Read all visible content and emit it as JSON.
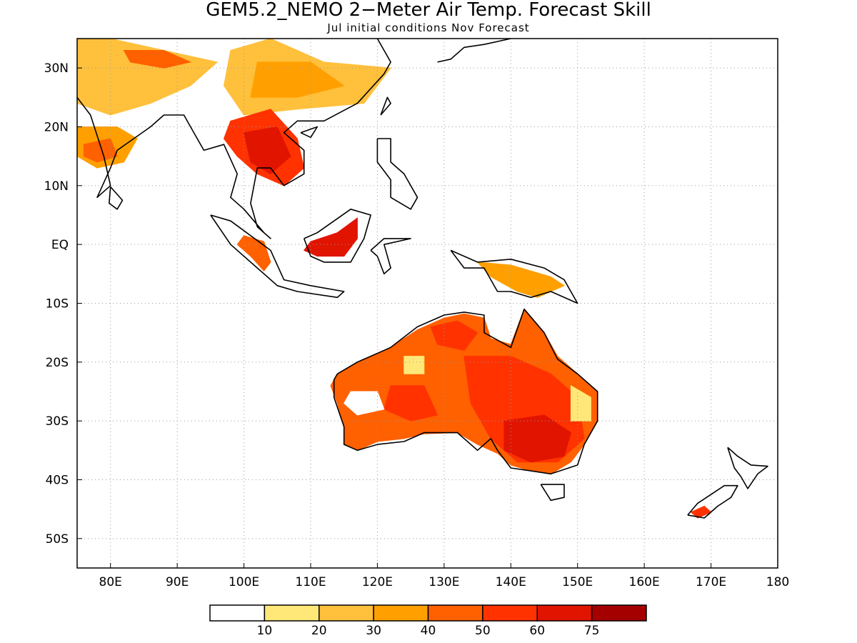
{
  "title": "GEM5.2_NEMO 2−Meter Air Temp. Forecast Skill",
  "subtitle": "Jul initial conditions  Nov Forecast",
  "map": {
    "lon_range": [
      75,
      180
    ],
    "lat_range": [
      -55,
      35
    ],
    "x_ticks": [
      {
        "value": 80,
        "label": "80E"
      },
      {
        "value": 90,
        "label": "90E"
      },
      {
        "value": 100,
        "label": "100E"
      },
      {
        "value": 110,
        "label": "110E"
      },
      {
        "value": 120,
        "label": "120E"
      },
      {
        "value": 130,
        "label": "130E"
      },
      {
        "value": 140,
        "label": "140E"
      },
      {
        "value": 150,
        "label": "150E"
      },
      {
        "value": 160,
        "label": "160E"
      },
      {
        "value": 170,
        "label": "170E"
      },
      {
        "value": 180,
        "label": "180"
      }
    ],
    "y_ticks": [
      {
        "value": 30,
        "label": "30N"
      },
      {
        "value": 20,
        "label": "20N"
      },
      {
        "value": 10,
        "label": "10N"
      },
      {
        "value": 0,
        "label": "EQ"
      },
      {
        "value": -10,
        "label": "10S"
      },
      {
        "value": -20,
        "label": "20S"
      },
      {
        "value": -30,
        "label": "30S"
      },
      {
        "value": -40,
        "label": "40S"
      },
      {
        "value": -50,
        "label": "50S"
      }
    ],
    "grid": "dotted",
    "coastline_color": "#000000"
  },
  "colorbar": {
    "colors": [
      "#ffffff",
      "#ffe878",
      "#ffc03c",
      "#ffa000",
      "#ff6000",
      "#ff3200",
      "#e11400",
      "#a50000"
    ],
    "labels": [
      "10",
      "20",
      "30",
      "40",
      "50",
      "60",
      "75"
    ]
  },
  "regions": [
    {
      "name": "india_north",
      "level": 2,
      "poly": [
        [
          75,
          35
        ],
        [
          80,
          35
        ],
        [
          88,
          33
        ],
        [
          96,
          31
        ],
        [
          92,
          27
        ],
        [
          86,
          24
        ],
        [
          80,
          22
        ],
        [
          75,
          24
        ]
      ]
    },
    {
      "name": "india_west",
      "level": 3,
      "poly": [
        [
          75,
          20
        ],
        [
          81,
          20
        ],
        [
          84,
          18
        ],
        [
          82,
          14
        ],
        [
          78,
          13
        ],
        [
          75,
          15
        ]
      ]
    },
    {
      "name": "india_core",
      "level": 4,
      "poly": [
        [
          76,
          17
        ],
        [
          80,
          18
        ],
        [
          81,
          15
        ],
        [
          78,
          14
        ],
        [
          76,
          15
        ]
      ]
    },
    {
      "name": "himalaya_band",
      "level": 4,
      "poly": [
        [
          82,
          33
        ],
        [
          88,
          33
        ],
        [
          92,
          31
        ],
        [
          88,
          30
        ],
        [
          83,
          31
        ]
      ]
    },
    {
      "name": "china_south",
      "level": 2,
      "poly": [
        [
          98,
          33
        ],
        [
          104,
          35
        ],
        [
          112,
          31
        ],
        [
          122,
          30
        ],
        [
          118,
          24
        ],
        [
          108,
          23
        ],
        [
          100,
          22
        ],
        [
          97,
          27
        ]
      ]
    },
    {
      "name": "china_inner",
      "level": 3,
      "poly": [
        [
          102,
          31
        ],
        [
          110,
          31
        ],
        [
          115,
          27
        ],
        [
          108,
          25
        ],
        [
          101,
          25
        ]
      ]
    },
    {
      "name": "indochina",
      "level": 5,
      "poly": [
        [
          98,
          21
        ],
        [
          104,
          23
        ],
        [
          108,
          18
        ],
        [
          109,
          13
        ],
        [
          106,
          10
        ],
        [
          102,
          12
        ],
        [
          99,
          15
        ],
        [
          97,
          18
        ]
      ]
    },
    {
      "name": "indochina_core",
      "level": 6,
      "poly": [
        [
          100,
          19
        ],
        [
          105,
          20
        ],
        [
          107,
          15
        ],
        [
          104,
          12
        ],
        [
          101,
          14
        ]
      ]
    },
    {
      "name": "malay_sumatra",
      "level": 4,
      "poly": [
        [
          100,
          1.5
        ],
        [
          103,
          0.5
        ],
        [
          104,
          -3
        ],
        [
          103,
          -4.5
        ],
        [
          101,
          -2
        ],
        [
          99,
          0
        ]
      ]
    },
    {
      "name": "borneo",
      "level": 6,
      "poly": [
        [
          110,
          0.5
        ],
        [
          114,
          2
        ],
        [
          117,
          4.5
        ],
        [
          117,
          1
        ],
        [
          115,
          -2
        ],
        [
          111,
          -2
        ],
        [
          109,
          -1
        ]
      ]
    },
    {
      "name": "new_guinea",
      "level": 3,
      "poly": [
        [
          135,
          -3
        ],
        [
          140,
          -3.5
        ],
        [
          146,
          -5.5
        ],
        [
          148,
          -7
        ],
        [
          144,
          -9
        ],
        [
          141,
          -8
        ],
        [
          137,
          -5.5
        ]
      ]
    },
    {
      "name": "aus_base",
      "level": 4,
      "poly": [
        [
          114,
          -22
        ],
        [
          117,
          -20
        ],
        [
          122,
          -17.5
        ],
        [
          126,
          -14.5
        ],
        [
          130,
          -12.5
        ],
        [
          133,
          -11.8
        ],
        [
          136,
          -12.5
        ],
        [
          137,
          -16
        ],
        [
          140,
          -17
        ],
        [
          142,
          -11
        ],
        [
          145,
          -15
        ],
        [
          147,
          -19
        ],
        [
          150,
          -22
        ],
        [
          153,
          -25
        ],
        [
          153,
          -30
        ],
        [
          151,
          -34
        ],
        [
          149,
          -37
        ],
        [
          146,
          -39
        ],
        [
          143,
          -38.5
        ],
        [
          140,
          -37.5
        ],
        [
          138,
          -35.5
        ],
        [
          135,
          -34
        ],
        [
          132,
          -32
        ],
        [
          127,
          -32.2
        ],
        [
          124,
          -33
        ],
        [
          120,
          -33.5
        ],
        [
          117,
          -35
        ],
        [
          115,
          -34
        ],
        [
          115,
          -31
        ],
        [
          114,
          -27
        ],
        [
          113,
          -24
        ]
      ]
    },
    {
      "name": "aus_east_mid",
      "level": 5,
      "poly": [
        [
          133,
          -19
        ],
        [
          140,
          -19
        ],
        [
          146,
          -22
        ],
        [
          150,
          -26
        ],
        [
          151,
          -33
        ],
        [
          147,
          -37
        ],
        [
          141,
          -37
        ],
        [
          137,
          -33
        ],
        [
          134,
          -27
        ]
      ]
    },
    {
      "name": "aus_southeast",
      "level": 6,
      "poly": [
        [
          139,
          -30
        ],
        [
          145,
          -29
        ],
        [
          149,
          -32
        ],
        [
          148,
          -36
        ],
        [
          143,
          -37
        ],
        [
          139,
          -35
        ]
      ]
    },
    {
      "name": "aus_central",
      "level": 5,
      "poly": [
        [
          122,
          -24
        ],
        [
          127,
          -24
        ],
        [
          129,
          -29
        ],
        [
          125,
          -30
        ],
        [
          121,
          -28
        ]
      ]
    },
    {
      "name": "aus_north",
      "level": 5,
      "poly": [
        [
          128,
          -14
        ],
        [
          132,
          -13
        ],
        [
          135,
          -15
        ],
        [
          133,
          -18
        ],
        [
          129,
          -17
        ]
      ]
    },
    {
      "name": "aus_wpale",
      "level": 0,
      "poly": [
        [
          116,
          -25
        ],
        [
          120,
          -25
        ],
        [
          121,
          -28
        ],
        [
          117,
          -29
        ],
        [
          115,
          -27
        ]
      ]
    },
    {
      "name": "aus_nwpale",
      "level": 1,
      "poly": [
        [
          124,
          -19
        ],
        [
          127,
          -19
        ],
        [
          127,
          -22
        ],
        [
          124,
          -22
        ]
      ]
    },
    {
      "name": "aus_epale",
      "level": 1,
      "poly": [
        [
          149,
          -24
        ],
        [
          152,
          -26
        ],
        [
          152,
          -30
        ],
        [
          149,
          -30
        ]
      ]
    },
    {
      "name": "new_zealand",
      "level": 5,
      "poly": [
        [
          167,
          -45.5
        ],
        [
          169,
          -44.5
        ],
        [
          170,
          -45.5
        ],
        [
          168,
          -46.5
        ]
      ]
    }
  ],
  "coastlines": [
    {
      "name": "indian_coast",
      "pts": [
        [
          75,
          25
        ],
        [
          77,
          22
        ],
        [
          79,
          15
        ],
        [
          80,
          10
        ],
        [
          78,
          8
        ],
        [
          80,
          13
        ],
        [
          81,
          16
        ],
        [
          86,
          20
        ],
        [
          88,
          22
        ],
        [
          91,
          22
        ],
        [
          92,
          20
        ],
        [
          94,
          16
        ],
        [
          97,
          17
        ],
        [
          99,
          12
        ],
        [
          98,
          8
        ],
        [
          100,
          6
        ],
        [
          103,
          2
        ],
        [
          104,
          1
        ],
        [
          102,
          3
        ],
        [
          101,
          7
        ],
        [
          102,
          13
        ],
        [
          104,
          13
        ],
        [
          106,
          10
        ],
        [
          109,
          12
        ],
        [
          109,
          16
        ],
        [
          106,
          19
        ],
        [
          108,
          21
        ],
        [
          112,
          21
        ],
        [
          117,
          24
        ],
        [
          121,
          29
        ],
        [
          122,
          31
        ],
        [
          120,
          35
        ]
      ]
    },
    {
      "name": "sumatra_java",
      "pts": [
        [
          95,
          5
        ],
        [
          98,
          4
        ],
        [
          104,
          -1
        ],
        [
          106,
          -6
        ],
        [
          110,
          -7
        ],
        [
          115,
          -8
        ],
        [
          114,
          -9
        ],
        [
          108,
          -8
        ],
        [
          105,
          -7
        ],
        [
          102,
          -4
        ],
        [
          98,
          0
        ],
        [
          95,
          5
        ]
      ]
    },
    {
      "name": "borneo_coast",
      "pts": [
        [
          109,
          1
        ],
        [
          111,
          2
        ],
        [
          116,
          6
        ],
        [
          119,
          5
        ],
        [
          118,
          1
        ],
        [
          116,
          -3
        ],
        [
          112,
          -3
        ],
        [
          110,
          -2
        ],
        [
          109,
          1
        ]
      ]
    },
    {
      "name": "sulawesi_coast",
      "pts": [
        [
          119,
          -1
        ],
        [
          121,
          1
        ],
        [
          125,
          1
        ],
        [
          121,
          0
        ],
        [
          122,
          -4
        ],
        [
          121,
          -5
        ],
        [
          120,
          -2
        ],
        [
          119,
          -1
        ]
      ]
    },
    {
      "name": "philippines",
      "pts": [
        [
          120,
          18
        ],
        [
          122,
          18
        ],
        [
          122,
          14
        ],
        [
          124,
          12
        ],
        [
          126,
          8
        ],
        [
          125,
          6
        ],
        [
          122,
          8
        ],
        [
          122,
          11
        ],
        [
          120,
          14
        ],
        [
          120,
          18
        ]
      ]
    },
    {
      "name": "new_guinea_coast",
      "pts": [
        [
          131,
          -1
        ],
        [
          135,
          -3
        ],
        [
          140,
          -2.5
        ],
        [
          145,
          -4
        ],
        [
          148,
          -6
        ],
        [
          150,
          -10
        ],
        [
          146,
          -8
        ],
        [
          143,
          -9
        ],
        [
          140,
          -8
        ],
        [
          138,
          -8
        ],
        [
          136,
          -4
        ],
        [
          133,
          -4
        ],
        [
          131,
          -1
        ]
      ]
    },
    {
      "name": "australia_coast",
      "pts": [
        [
          114,
          -22
        ],
        [
          117,
          -20
        ],
        [
          122,
          -17.5
        ],
        [
          126,
          -14
        ],
        [
          130,
          -12
        ],
        [
          133,
          -11.5
        ],
        [
          136,
          -12
        ],
        [
          136,
          -15
        ],
        [
          140,
          -17.5
        ],
        [
          142,
          -11
        ],
        [
          145,
          -15
        ],
        [
          147,
          -19.5
        ],
        [
          150,
          -22
        ],
        [
          153,
          -25
        ],
        [
          153,
          -30
        ],
        [
          151,
          -34
        ],
        [
          150,
          -37.5
        ],
        [
          146,
          -39
        ],
        [
          143,
          -38.5
        ],
        [
          140,
          -38
        ],
        [
          138,
          -35
        ],
        [
          137,
          -33
        ],
        [
          135,
          -35
        ],
        [
          132,
          -32
        ],
        [
          127,
          -32
        ],
        [
          124,
          -33.5
        ],
        [
          120,
          -34
        ],
        [
          117,
          -35
        ],
        [
          115,
          -34
        ],
        [
          115,
          -31
        ],
        [
          113.5,
          -26
        ],
        [
          113.5,
          -23
        ],
        [
          114,
          -22
        ]
      ]
    },
    {
      "name": "tasmania",
      "pts": [
        [
          144.5,
          -40.8
        ],
        [
          148,
          -40.8
        ],
        [
          148,
          -43
        ],
        [
          146,
          -43.5
        ],
        [
          144.5,
          -40.8
        ]
      ]
    },
    {
      "name": "nz_south",
      "pts": [
        [
          166.5,
          -46
        ],
        [
          168,
          -44
        ],
        [
          172,
          -41
        ],
        [
          174,
          -41
        ],
        [
          173,
          -43
        ],
        [
          171,
          -44.5
        ],
        [
          169,
          -46.5
        ],
        [
          166.5,
          -46
        ]
      ]
    },
    {
      "name": "nz_north",
      "pts": [
        [
          172.5,
          -34.5
        ],
        [
          174,
          -36
        ],
        [
          176,
          -37.5
        ],
        [
          178.5,
          -37.7
        ],
        [
          177,
          -39
        ],
        [
          175.5,
          -41.5
        ],
        [
          174.5,
          -39.5
        ],
        [
          173.5,
          -38
        ],
        [
          172.5,
          -34.5
        ]
      ]
    },
    {
      "name": "japan",
      "pts": [
        [
          129,
          31
        ],
        [
          131,
          31.5
        ],
        [
          133,
          33.5
        ],
        [
          136,
          34
        ],
        [
          140,
          35
        ]
      ]
    },
    {
      "name": "taiwan",
      "pts": [
        [
          120.5,
          22
        ],
        [
          121.5,
          25
        ],
        [
          122,
          24
        ],
        [
          120.5,
          22
        ]
      ]
    },
    {
      "name": "hainan",
      "pts": [
        [
          108.5,
          19
        ],
        [
          111,
          20
        ],
        [
          110,
          18.2
        ],
        [
          108.5,
          19
        ]
      ]
    },
    {
      "name": "sri_lanka",
      "pts": [
        [
          80,
          9.8
        ],
        [
          81.8,
          7.5
        ],
        [
          81,
          6
        ],
        [
          79.8,
          7
        ],
        [
          80,
          9.8
        ]
      ]
    }
  ]
}
